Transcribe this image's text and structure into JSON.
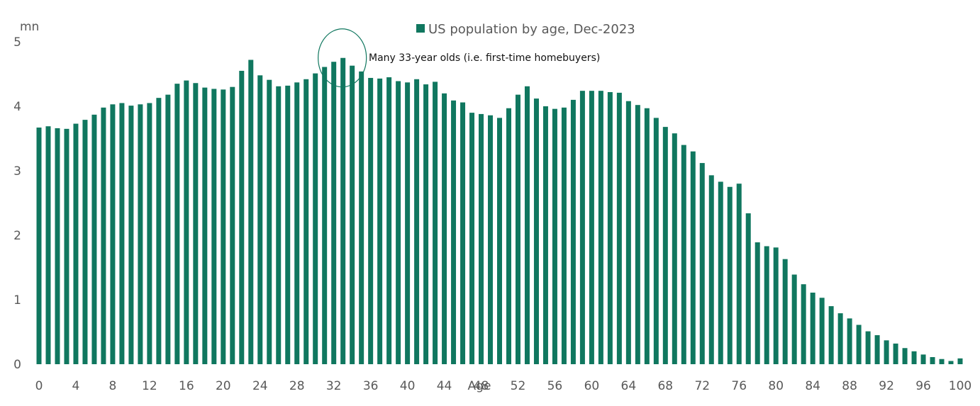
{
  "chart_data": {
    "type": "bar",
    "title": "",
    "legend": [
      {
        "label": "US population by age, Dec-2023",
        "color": "#10775f"
      }
    ],
    "xlabel": "Age",
    "ylabel": "mn",
    "ylim": [
      0,
      5
    ],
    "yticks": [
      0,
      1,
      2,
      3,
      4,
      5
    ],
    "xticks": [
      "0",
      "4",
      "8",
      "12",
      "16",
      "20",
      "24",
      "28",
      "32",
      "36",
      "40",
      "44",
      "48",
      "52",
      "56",
      "60",
      "64",
      "68",
      "72",
      "76",
      "80",
      "84",
      "88",
      "92",
      "96",
      "100"
    ],
    "categories": [
      0,
      1,
      2,
      3,
      4,
      5,
      6,
      7,
      8,
      9,
      10,
      11,
      12,
      13,
      14,
      15,
      16,
      17,
      18,
      19,
      20,
      21,
      22,
      23,
      24,
      25,
      26,
      27,
      28,
      29,
      30,
      31,
      32,
      33,
      34,
      35,
      36,
      37,
      38,
      39,
      40,
      41,
      42,
      43,
      44,
      45,
      46,
      47,
      48,
      49,
      50,
      51,
      52,
      53,
      54,
      55,
      56,
      57,
      58,
      59,
      60,
      61,
      62,
      63,
      64,
      65,
      66,
      67,
      68,
      69,
      70,
      71,
      72,
      73,
      74,
      75,
      76,
      77,
      78,
      79,
      80,
      81,
      82,
      83,
      84,
      85,
      86,
      87,
      88,
      89,
      90,
      91,
      92,
      93,
      94,
      95,
      96,
      97,
      98,
      99,
      100
    ],
    "values": [
      3.67,
      3.69,
      3.66,
      3.65,
      3.73,
      3.79,
      3.87,
      3.98,
      4.03,
      4.05,
      4.01,
      4.03,
      4.05,
      4.13,
      4.18,
      4.35,
      4.4,
      4.36,
      4.29,
      4.27,
      4.26,
      4.3,
      4.55,
      4.72,
      4.48,
      4.41,
      4.31,
      4.32,
      4.37,
      4.42,
      4.51,
      4.61,
      4.69,
      4.75,
      4.63,
      4.54,
      4.44,
      4.43,
      4.45,
      4.39,
      4.37,
      4.42,
      4.34,
      4.38,
      4.2,
      4.09,
      4.06,
      3.9,
      3.88,
      3.86,
      3.82,
      3.97,
      4.18,
      4.31,
      4.12,
      4.0,
      3.96,
      3.98,
      4.1,
      4.24,
      4.24,
      4.24,
      4.22,
      4.21,
      4.08,
      4.02,
      3.97,
      3.82,
      3.68,
      3.58,
      3.4,
      3.3,
      3.12,
      2.93,
      2.83,
      2.75,
      2.8,
      2.34,
      1.89,
      1.83,
      1.81,
      1.63,
      1.39,
      1.24,
      1.11,
      1.03,
      0.9,
      0.79,
      0.71,
      0.61,
      0.51,
      0.45,
      0.37,
      0.32,
      0.25,
      0.2,
      0.15,
      0.11,
      0.08,
      0.05,
      0.09
    ],
    "color": "#10775f",
    "grid": false,
    "legend_position": "top-center",
    "annotations": [
      {
        "text": "Many 33-year olds (i.e. first-time homebuyers)",
        "x": 33,
        "y": 4.75,
        "shape": "circle"
      }
    ]
  }
}
